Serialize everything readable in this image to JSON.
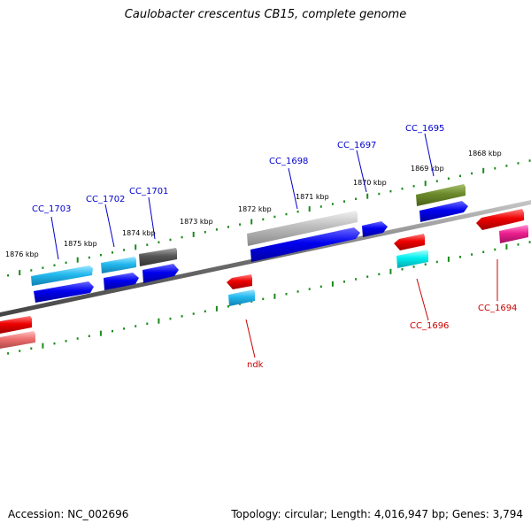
{
  "title": "Caulobacter crescentus CB15, complete genome",
  "footer": {
    "accession": "Accession: NC_002696",
    "summary": "Topology: circular; Length: 4,016,947 bp; Genes: 3,794"
  },
  "colors": {
    "backbone": "#7a7a7a",
    "tick": "#1a8a1a",
    "label_forward": "#0000cc",
    "label_reverse": "#cc0000"
  },
  "kbp_labels": [
    {
      "id": "1876",
      "text": "1876 kbp"
    },
    {
      "id": "1875",
      "text": "1875 kbp"
    },
    {
      "id": "1874",
      "text": "1874 kbp"
    },
    {
      "id": "1873",
      "text": "1873 kbp"
    },
    {
      "id": "1872",
      "text": "1872 kbp"
    },
    {
      "id": "1871",
      "text": "1871 kbp"
    },
    {
      "id": "1870",
      "text": "1870 kbp"
    },
    {
      "id": "1869",
      "text": "1869 kbp"
    },
    {
      "id": "1868",
      "text": "1868 kbp"
    }
  ],
  "gene_labels": [
    {
      "id": "cc1703",
      "text": "CC_1703",
      "strand": "forward"
    },
    {
      "id": "cc1702",
      "text": "CC_1702",
      "strand": "forward"
    },
    {
      "id": "cc1701",
      "text": "CC_1701",
      "strand": "forward"
    },
    {
      "id": "cc1698",
      "text": "CC_1698",
      "strand": "forward"
    },
    {
      "id": "cc1697",
      "text": "CC_1697",
      "strand": "forward"
    },
    {
      "id": "cc1695",
      "text": "CC_1695",
      "strand": "forward"
    },
    {
      "id": "ndk",
      "text": "ndk",
      "strand": "reverse"
    },
    {
      "id": "cc1696",
      "text": "CC_1696",
      "strand": "reverse"
    },
    {
      "id": "cc1694",
      "text": "CC_1694",
      "strand": "reverse"
    }
  ]
}
